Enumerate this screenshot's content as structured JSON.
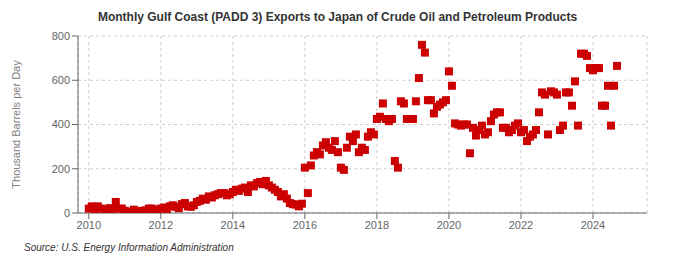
{
  "chart_data": {
    "type": "scatter",
    "title": "Monthly Gulf Coast (PADD 3) Exports to Japan of Crude Oil and Petroleum Products",
    "ylabel": "Thousand Barrels per Day",
    "annotation": "Source: U.S. Energy Information Administration",
    "color": "#cc0000",
    "marker": "square",
    "grid": true,
    "xlim": [
      2009.7,
      2025.5
    ],
    "xticks": [
      2010,
      2012,
      2014,
      2016,
      2018,
      2020,
      2022,
      2024
    ],
    "ylim": [
      0,
      800
    ],
    "yticks": [
      0,
      200,
      400,
      600,
      800
    ],
    "x": [
      2010.0,
      2010.083,
      2010.167,
      2010.25,
      2010.333,
      2010.417,
      2010.5,
      2010.583,
      2010.667,
      2010.75,
      2010.833,
      2010.917,
      2011.0,
      2011.083,
      2011.167,
      2011.25,
      2011.333,
      2011.417,
      2011.5,
      2011.583,
      2011.667,
      2011.75,
      2011.833,
      2011.917,
      2012.0,
      2012.083,
      2012.167,
      2012.25,
      2012.333,
      2012.417,
      2012.5,
      2012.583,
      2012.667,
      2012.75,
      2012.833,
      2012.917,
      2013.0,
      2013.083,
      2013.167,
      2013.25,
      2013.333,
      2013.417,
      2013.5,
      2013.583,
      2013.667,
      2013.75,
      2013.833,
      2013.917,
      2014.0,
      2014.083,
      2014.167,
      2014.25,
      2014.333,
      2014.417,
      2014.5,
      2014.583,
      2014.667,
      2014.75,
      2014.833,
      2014.917,
      2015.0,
      2015.083,
      2015.167,
      2015.25,
      2015.333,
      2015.417,
      2015.5,
      2015.583,
      2015.667,
      2015.75,
      2015.833,
      2015.917,
      2016.0,
      2016.083,
      2016.167,
      2016.25,
      2016.333,
      2016.417,
      2016.5,
      2016.583,
      2016.667,
      2016.75,
      2016.833,
      2016.917,
      2017.0,
      2017.083,
      2017.167,
      2017.25,
      2017.333,
      2017.417,
      2017.5,
      2017.583,
      2017.667,
      2017.75,
      2017.833,
      2017.917,
      2018.0,
      2018.083,
      2018.167,
      2018.25,
      2018.333,
      2018.417,
      2018.5,
      2018.583,
      2018.667,
      2018.75,
      2018.833,
      2018.917,
      2019.0,
      2019.083,
      2019.167,
      2019.25,
      2019.333,
      2019.417,
      2019.5,
      2019.583,
      2019.667,
      2019.75,
      2019.833,
      2019.917,
      2020.0,
      2020.083,
      2020.167,
      2020.25,
      2020.333,
      2020.417,
      2020.5,
      2020.583,
      2020.667,
      2020.75,
      2020.833,
      2020.917,
      2021.0,
      2021.083,
      2021.167,
      2021.25,
      2021.333,
      2021.417,
      2021.5,
      2021.583,
      2021.667,
      2021.75,
      2021.833,
      2021.917,
      2022.0,
      2022.083,
      2022.167,
      2022.25,
      2022.333,
      2022.417,
      2022.5,
      2022.583,
      2022.667,
      2022.75,
      2022.833,
      2022.917,
      2023.0,
      2023.083,
      2023.167,
      2023.25,
      2023.333,
      2023.417,
      2023.5,
      2023.583,
      2023.667,
      2023.75,
      2023.833,
      2023.917,
      2024.0,
      2024.083,
      2024.167,
      2024.25,
      2024.333,
      2024.417,
      2024.5,
      2024.583,
      2024.667
    ],
    "values": [
      20,
      30,
      15,
      30,
      20,
      10,
      18,
      22,
      15,
      50,
      20,
      20,
      10,
      5,
      5,
      15,
      8,
      5,
      10,
      12,
      20,
      20,
      8,
      15,
      20,
      25,
      18,
      30,
      35,
      28,
      22,
      40,
      45,
      30,
      28,
      35,
      50,
      55,
      65,
      60,
      75,
      70,
      80,
      85,
      90,
      90,
      80,
      85,
      95,
      105,
      100,
      110,
      115,
      95,
      125,
      120,
      135,
      140,
      130,
      145,
      125,
      115,
      105,
      95,
      75,
      85,
      65,
      45,
      40,
      38,
      30,
      42,
      205,
      90,
      215,
      260,
      275,
      265,
      305,
      320,
      295,
      285,
      325,
      275,
      205,
      195,
      295,
      345,
      325,
      355,
      275,
      295,
      285,
      345,
      365,
      355,
      425,
      435,
      495,
      425,
      415,
      425,
      235,
      205,
      505,
      495,
      425,
      425,
      425,
      505,
      610,
      760,
      725,
      510,
      510,
      450,
      480,
      490,
      500,
      510,
      640,
      575,
      405,
      400,
      395,
      400,
      400,
      270,
      385,
      350,
      375,
      395,
      355,
      365,
      415,
      445,
      455,
      455,
      385,
      385,
      365,
      375,
      395,
      405,
      365,
      375,
      325,
      345,
      355,
      375,
      455,
      545,
      535,
      355,
      550,
      545,
      535,
      375,
      395,
      545,
      545,
      485,
      595,
      395,
      720,
      720,
      710,
      655,
      645,
      655,
      655,
      485,
      485,
      575,
      395,
      575,
      665
    ]
  }
}
